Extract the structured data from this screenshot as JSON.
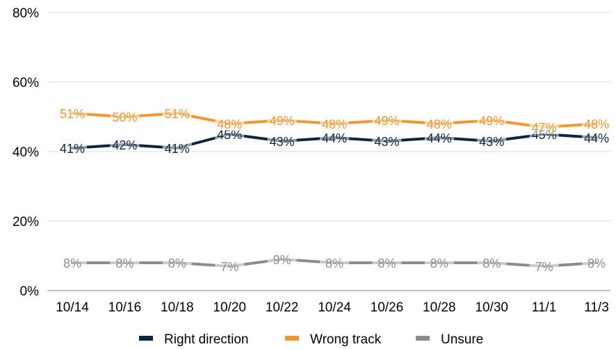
{
  "chart_data": {
    "type": "line",
    "categories": [
      "10/14",
      "10/16",
      "10/18",
      "10/20",
      "10/22",
      "10/24",
      "10/26",
      "10/28",
      "10/30",
      "11/1",
      "11/3"
    ],
    "ylim": [
      0,
      80
    ],
    "yticks": [
      0,
      20,
      40,
      60,
      80
    ],
    "ytick_labels": [
      "0%",
      "20%",
      "40%",
      "60%",
      "80%"
    ],
    "grid": true,
    "legend_position": "bottom",
    "value_suffix": "%",
    "series": [
      {
        "name": "Right direction",
        "color": "#0d2540",
        "values": [
          41,
          42,
          41,
          45,
          43,
          44,
          43,
          44,
          43,
          45,
          44
        ]
      },
      {
        "name": "Wrong track",
        "color": "#f2962e",
        "values": [
          51,
          50,
          51,
          48,
          49,
          48,
          49,
          48,
          49,
          47,
          48
        ]
      },
      {
        "name": "Unsure",
        "color": "#8c8c8c",
        "values": [
          8,
          8,
          8,
          7,
          9,
          8,
          8,
          8,
          8,
          7,
          8
        ]
      }
    ]
  }
}
